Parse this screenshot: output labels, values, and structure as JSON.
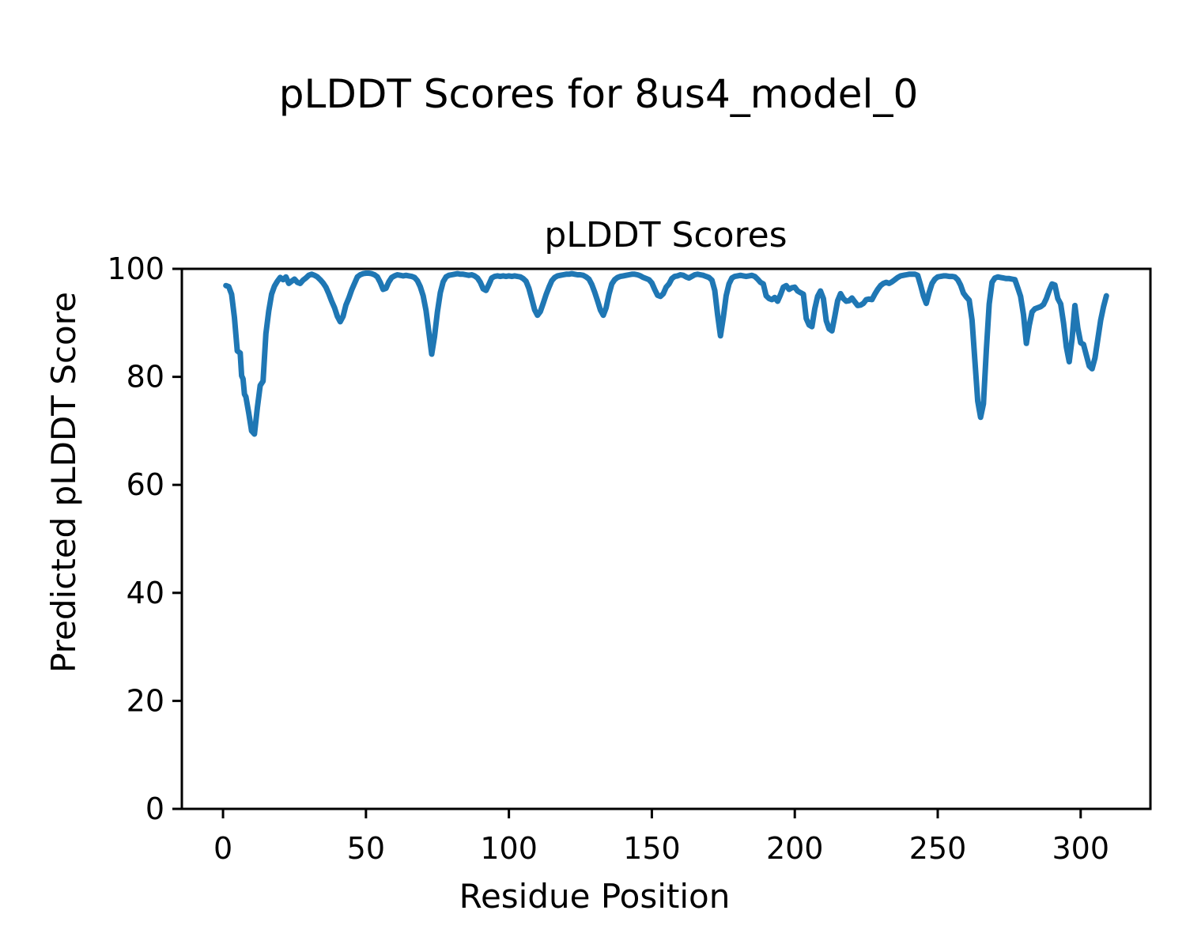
{
  "figure": {
    "title": "pLDDT Scores for 8us4_model_0"
  },
  "chart_data": {
    "type": "line",
    "title": "pLDDT Scores",
    "xlabel": "Residue Position",
    "ylabel": "Predicted pLDDT Score",
    "xlim": [
      -14.4,
      324.4
    ],
    "ylim": [
      0,
      100
    ],
    "xticks": [
      0,
      50,
      100,
      150,
      200,
      250,
      300
    ],
    "yticks": [
      0,
      20,
      40,
      60,
      80,
      100
    ],
    "grid": false,
    "legend": "none",
    "line_color": "#1f77b4",
    "line_width": 7,
    "series": [
      {
        "name": "pLDDT",
        "points": [
          [
            1,
            96.9
          ],
          [
            2,
            96.7
          ],
          [
            3,
            95.3
          ],
          [
            4,
            91.0
          ],
          [
            5,
            84.8
          ],
          [
            6,
            84.4
          ],
          [
            6.5,
            80.2
          ],
          [
            7,
            79.6
          ],
          [
            7.5,
            76.8
          ],
          [
            8,
            76.3
          ],
          [
            9,
            73.3
          ],
          [
            10,
            70.0
          ],
          [
            11,
            69.4
          ],
          [
            12,
            74.3
          ],
          [
            13,
            78.4
          ],
          [
            14,
            79.2
          ],
          [
            15,
            88.0
          ],
          [
            16,
            92.2
          ],
          [
            17,
            95.3
          ],
          [
            18,
            96.8
          ],
          [
            19,
            97.7
          ],
          [
            20,
            98.4
          ],
          [
            21,
            98.0
          ],
          [
            22,
            98.5
          ],
          [
            23,
            97.3
          ],
          [
            24,
            97.7
          ],
          [
            25,
            98.1
          ],
          [
            26,
            97.5
          ],
          [
            27,
            97.3
          ],
          [
            28,
            97.9
          ],
          [
            29,
            98.3
          ],
          [
            30,
            98.8
          ],
          [
            31,
            99.0
          ],
          [
            32,
            98.8
          ],
          [
            33,
            98.5
          ],
          [
            34,
            98.0
          ],
          [
            35,
            97.4
          ],
          [
            36,
            96.6
          ],
          [
            37,
            95.4
          ],
          [
            38,
            94.0
          ],
          [
            39,
            92.8
          ],
          [
            40,
            91.2
          ],
          [
            41,
            90.2
          ],
          [
            42,
            91.2
          ],
          [
            43,
            93.3
          ],
          [
            44,
            94.6
          ],
          [
            45,
            96.1
          ],
          [
            46,
            97.3
          ],
          [
            47,
            98.5
          ],
          [
            48,
            98.9
          ],
          [
            49,
            99.1
          ],
          [
            50,
            99.2
          ],
          [
            51,
            99.2
          ],
          [
            52,
            99.1
          ],
          [
            53,
            98.9
          ],
          [
            54,
            98.5
          ],
          [
            55,
            97.5
          ],
          [
            56,
            96.2
          ],
          [
            57,
            96.4
          ],
          [
            58,
            97.6
          ],
          [
            59,
            98.4
          ],
          [
            60,
            98.7
          ],
          [
            61,
            98.9
          ],
          [
            62,
            98.8
          ],
          [
            63,
            98.7
          ],
          [
            64,
            98.8
          ],
          [
            65,
            98.7
          ],
          [
            66,
            98.6
          ],
          [
            67,
            98.4
          ],
          [
            68,
            97.8
          ],
          [
            69,
            96.7
          ],
          [
            70,
            95.0
          ],
          [
            71,
            92.3
          ],
          [
            72,
            88.3
          ],
          [
            73,
            84.2
          ],
          [
            74,
            87.5
          ],
          [
            75,
            92.0
          ],
          [
            76,
            95.6
          ],
          [
            77,
            97.6
          ],
          [
            78,
            98.5
          ],
          [
            79,
            98.8
          ],
          [
            80,
            98.9
          ],
          [
            81,
            99.0
          ],
          [
            82,
            99.1
          ],
          [
            83,
            99.0
          ],
          [
            84,
            99.0
          ],
          [
            85,
            98.9
          ],
          [
            86,
            98.8
          ],
          [
            87,
            98.9
          ],
          [
            88,
            98.7
          ],
          [
            89,
            98.3
          ],
          [
            90,
            97.5
          ],
          [
            91,
            96.3
          ],
          [
            92,
            96.0
          ],
          [
            93,
            97.1
          ],
          [
            94,
            98.3
          ],
          [
            95,
            98.6
          ],
          [
            96,
            98.7
          ],
          [
            97,
            98.6
          ],
          [
            98,
            98.7
          ],
          [
            99,
            98.6
          ],
          [
            100,
            98.7
          ],
          [
            101,
            98.6
          ],
          [
            102,
            98.7
          ],
          [
            103,
            98.6
          ],
          [
            104,
            98.5
          ],
          [
            105,
            98.2
          ],
          [
            106,
            97.7
          ],
          [
            107,
            96.4
          ],
          [
            108,
            94.4
          ],
          [
            109,
            92.4
          ],
          [
            110,
            91.4
          ],
          [
            111,
            92.1
          ],
          [
            112,
            93.6
          ],
          [
            113,
            95.2
          ],
          [
            114,
            96.6
          ],
          [
            115,
            97.8
          ],
          [
            116,
            98.4
          ],
          [
            117,
            98.7
          ],
          [
            118,
            98.8
          ],
          [
            119,
            98.9
          ],
          [
            120,
            99.0
          ],
          [
            121,
            99.0
          ],
          [
            122,
            99.1
          ],
          [
            123,
            99.0
          ],
          [
            124,
            98.9
          ],
          [
            125,
            98.9
          ],
          [
            126,
            98.8
          ],
          [
            127,
            98.5
          ],
          [
            128,
            98.1
          ],
          [
            129,
            97.1
          ],
          [
            130,
            95.7
          ],
          [
            131,
            94.1
          ],
          [
            132,
            92.4
          ],
          [
            133,
            91.4
          ],
          [
            134,
            92.8
          ],
          [
            135,
            95.3
          ],
          [
            136,
            97.2
          ],
          [
            137,
            98.0
          ],
          [
            138,
            98.4
          ],
          [
            139,
            98.6
          ],
          [
            140,
            98.7
          ],
          [
            141,
            98.8
          ],
          [
            142,
            98.9
          ],
          [
            143,
            99.0
          ],
          [
            144,
            99.0
          ],
          [
            145,
            98.9
          ],
          [
            146,
            98.7
          ],
          [
            147,
            98.4
          ],
          [
            148,
            98.2
          ],
          [
            149,
            98.0
          ],
          [
            150,
            97.4
          ],
          [
            151,
            96.2
          ],
          [
            152,
            95.1
          ],
          [
            153,
            94.9
          ],
          [
            154,
            95.4
          ],
          [
            155,
            96.6
          ],
          [
            156,
            97.2
          ],
          [
            157,
            98.2
          ],
          [
            158,
            98.6
          ],
          [
            159,
            98.7
          ],
          [
            160,
            98.9
          ],
          [
            161,
            98.8
          ],
          [
            162,
            98.5
          ],
          [
            163,
            98.3
          ],
          [
            164,
            98.6
          ],
          [
            165,
            98.9
          ],
          [
            166,
            99.0
          ],
          [
            167,
            98.9
          ],
          [
            168,
            98.8
          ],
          [
            169,
            98.6
          ],
          [
            170,
            98.4
          ],
          [
            171,
            97.9
          ],
          [
            172,
            96.0
          ],
          [
            173,
            91.5
          ],
          [
            174,
            87.6
          ],
          [
            175,
            91.0
          ],
          [
            176,
            95.0
          ],
          [
            177,
            97.2
          ],
          [
            178,
            98.3
          ],
          [
            179,
            98.6
          ],
          [
            180,
            98.7
          ],
          [
            181,
            98.8
          ],
          [
            182,
            98.7
          ],
          [
            183,
            98.6
          ],
          [
            184,
            98.7
          ],
          [
            185,
            98.8
          ],
          [
            186,
            98.6
          ],
          [
            187,
            98.1
          ],
          [
            188,
            97.5
          ],
          [
            189,
            97.2
          ],
          [
            190,
            95.0
          ],
          [
            191,
            94.5
          ],
          [
            192,
            94.3
          ],
          [
            193,
            94.7
          ],
          [
            194,
            94.0
          ],
          [
            195,
            95.2
          ],
          [
            196,
            96.6
          ],
          [
            197,
            96.9
          ],
          [
            198,
            96.2
          ],
          [
            199,
            96.5
          ],
          [
            200,
            96.6
          ],
          [
            201,
            95.9
          ],
          [
            202,
            95.6
          ],
          [
            203,
            95.3
          ],
          [
            204,
            90.8
          ],
          [
            205,
            89.6
          ],
          [
            206,
            89.3
          ],
          [
            207,
            92.6
          ],
          [
            208,
            94.9
          ],
          [
            209,
            95.9
          ],
          [
            210,
            94.5
          ],
          [
            211,
            90.4
          ],
          [
            212,
            88.9
          ],
          [
            213,
            88.5
          ],
          [
            214,
            91.2
          ],
          [
            215,
            94.1
          ],
          [
            216,
            95.4
          ],
          [
            217,
            94.5
          ],
          [
            218,
            94.0
          ],
          [
            219,
            94.1
          ],
          [
            220,
            94.6
          ],
          [
            221,
            93.9
          ],
          [
            222,
            93.2
          ],
          [
            223,
            93.3
          ],
          [
            224,
            93.6
          ],
          [
            225,
            94.3
          ],
          [
            226,
            94.4
          ],
          [
            227,
            94.3
          ],
          [
            228,
            95.3
          ],
          [
            229,
            96.2
          ],
          [
            230,
            96.9
          ],
          [
            231,
            97.3
          ],
          [
            232,
            97.5
          ],
          [
            233,
            97.3
          ],
          [
            234,
            97.6
          ],
          [
            235,
            98.0
          ],
          [
            236,
            98.4
          ],
          [
            237,
            98.7
          ],
          [
            238,
            98.8
          ],
          [
            239,
            98.9
          ],
          [
            240,
            99.0
          ],
          [
            241,
            99.0
          ],
          [
            242,
            99.0
          ],
          [
            243,
            98.8
          ],
          [
            244,
            97.0
          ],
          [
            245,
            95.0
          ],
          [
            246,
            93.6
          ],
          [
            247,
            95.6
          ],
          [
            248,
            97.3
          ],
          [
            249,
            98.1
          ],
          [
            250,
            98.5
          ],
          [
            251,
            98.6
          ],
          [
            252,
            98.7
          ],
          [
            253,
            98.7
          ],
          [
            254,
            98.6
          ],
          [
            255,
            98.6
          ],
          [
            256,
            98.5
          ],
          [
            257,
            98.0
          ],
          [
            258,
            97.0
          ],
          [
            259,
            95.5
          ],
          [
            260,
            94.8
          ],
          [
            261,
            94.2
          ],
          [
            262,
            90.5
          ],
          [
            263,
            83.0
          ],
          [
            264,
            75.5
          ],
          [
            265,
            72.5
          ],
          [
            266,
            75.0
          ],
          [
            267,
            85.0
          ],
          [
            268,
            93.5
          ],
          [
            269,
            97.5
          ],
          [
            270,
            98.3
          ],
          [
            271,
            98.5
          ],
          [
            272,
            98.4
          ],
          [
            273,
            98.3
          ],
          [
            274,
            98.2
          ],
          [
            275,
            98.2
          ],
          [
            276,
            98.1
          ],
          [
            277,
            98.0
          ],
          [
            278,
            96.5
          ],
          [
            279,
            94.9
          ],
          [
            280,
            91.5
          ],
          [
            281,
            86.2
          ],
          [
            282,
            89.5
          ],
          [
            283,
            92.0
          ],
          [
            284,
            92.6
          ],
          [
            285,
            92.8
          ],
          [
            286,
            93.0
          ],
          [
            287,
            93.4
          ],
          [
            288,
            94.5
          ],
          [
            289,
            96.0
          ],
          [
            290,
            97.2
          ],
          [
            291,
            97.0
          ],
          [
            292,
            94.5
          ],
          [
            293,
            93.5
          ],
          [
            294,
            90.0
          ],
          [
            295,
            85.5
          ],
          [
            296,
            82.8
          ],
          [
            297,
            87.0
          ],
          [
            298,
            93.2
          ],
          [
            299,
            89.0
          ],
          [
            300,
            86.3
          ],
          [
            301,
            86.0
          ],
          [
            302,
            84.0
          ],
          [
            303,
            82.0
          ],
          [
            304,
            81.5
          ],
          [
            305,
            83.5
          ],
          [
            306,
            87.0
          ],
          [
            307,
            90.5
          ],
          [
            308,
            93.0
          ],
          [
            309,
            95.0
          ]
        ]
      }
    ]
  }
}
